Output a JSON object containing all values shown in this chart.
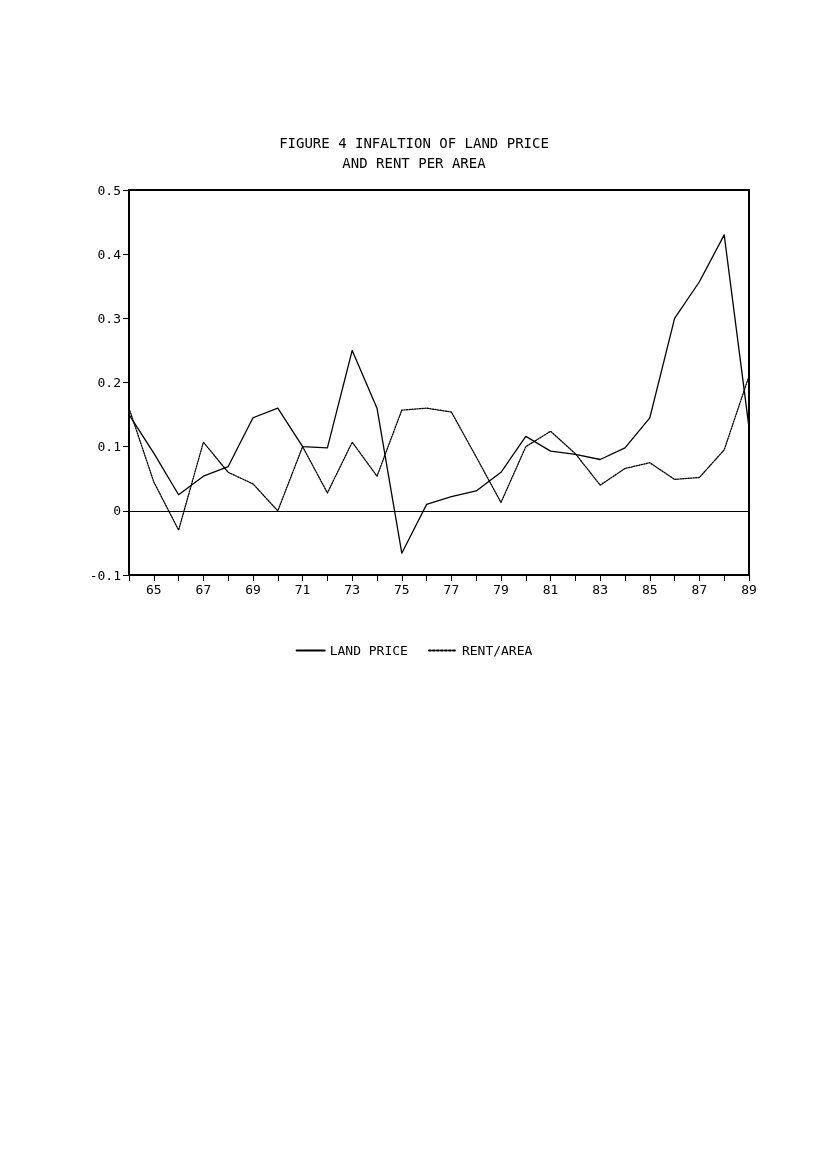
{
  "chart_data": {
    "type": "line",
    "title": "FIGURE 4 INFALTION OF LAND PRICE\nAND RENT PER AREA",
    "x": [
      64,
      65,
      66,
      67,
      68,
      69,
      70,
      71,
      72,
      73,
      74,
      75,
      76,
      77,
      78,
      79,
      80,
      81,
      82,
      83,
      84,
      85,
      86,
      87,
      88,
      89
    ],
    "series": [
      {
        "name": "LAND PRICE",
        "color": "#000000",
        "line_style": "solid",
        "values": [
          0.15,
          0.09,
          0.025,
          0.054,
          0.069,
          0.145,
          0.16,
          0.1,
          0.098,
          0.25,
          0.16,
          -0.066,
          0.01,
          0.022,
          0.031,
          0.06,
          0.116,
          0.093,
          0.088,
          0.08,
          0.098,
          0.145,
          0.3,
          0.357,
          0.43,
          0.13
        ]
      },
      {
        "name": "RENT/AREA",
        "color": "#000000",
        "line_style": "dotted",
        "values": [
          0.16,
          0.045,
          -0.03,
          0.107,
          0.06,
          0.042,
          0,
          0.1,
          0.028,
          0.107,
          0.054,
          0.157,
          0.16,
          0.154,
          0.084,
          0.013,
          0.1,
          0.124,
          0.089,
          0.04,
          0.066,
          0.075,
          0.049,
          0.052,
          0.095,
          0.21
        ]
      }
    ],
    "xlim": [
      64,
      89
    ],
    "xticks": [
      {
        "value": 64,
        "label": null
      },
      65,
      {
        "value": 66,
        "label": null
      },
      67,
      {
        "value": 68,
        "label": null
      },
      69,
      {
        "value": 70,
        "label": null
      },
      71,
      {
        "value": 72,
        "label": null
      },
      73,
      {
        "value": 74,
        "label": null
      },
      75,
      {
        "value": 76,
        "label": null
      },
      77,
      {
        "value": 78,
        "label": null
      },
      79,
      {
        "value": 80,
        "label": null
      },
      81,
      {
        "value": 82,
        "label": null
      },
      83,
      {
        "value": 84,
        "label": null
      },
      85,
      {
        "value": 86,
        "label": null
      },
      87,
      {
        "value": 88,
        "label": null
      },
      89
    ],
    "ylim": [
      -0.1,
      0.5
    ],
    "yticks": [
      -0.1,
      0,
      0.1,
      0.2,
      0.3,
      0.4,
      0.5
    ],
    "ref_lines": [
      {
        "axis": "y",
        "value": 0,
        "label": null
      }
    ],
    "grid": false,
    "legend": "bottom",
    "marker": "none"
  }
}
